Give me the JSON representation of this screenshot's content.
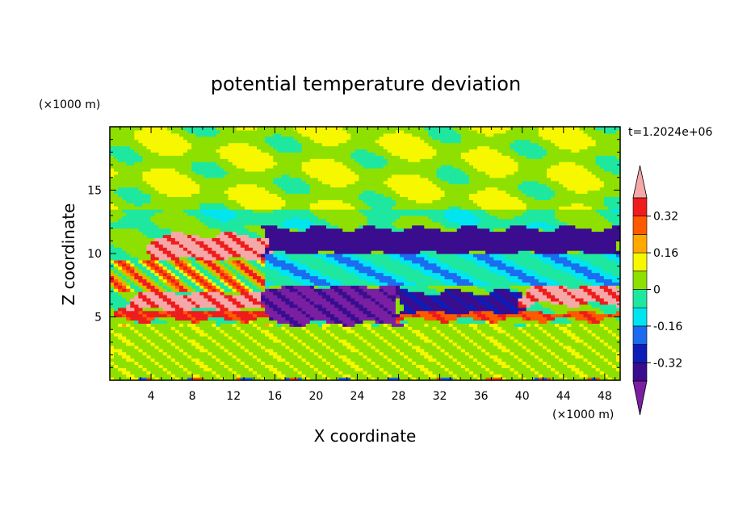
{
  "chart_data": {
    "type": "heatmap",
    "title": "potential temperature deviation",
    "xlabel": "X coordinate",
    "ylabel": "Z coordinate",
    "x_unit": "(×1000 m)",
    "y_unit": "(×1000 m)",
    "time_label": "t=1.2024e+06",
    "xlim": [
      0,
      49.5
    ],
    "ylim": [
      0,
      20
    ],
    "x_ticks": [
      4,
      8,
      12,
      16,
      20,
      24,
      28,
      32,
      36,
      40,
      44,
      48
    ],
    "y_ticks": [
      5,
      10,
      15
    ],
    "colorbar": {
      "levels": [
        -0.4,
        -0.32,
        -0.24,
        -0.16,
        -0.08,
        0,
        0.08,
        0.16,
        0.24,
        0.32,
        0.4
      ],
      "tick_labels": [
        "0.32",
        "0.16",
        "0",
        "-0.16",
        "-0.32"
      ],
      "tick_values": [
        0.32,
        0.16,
        0,
        -0.16,
        -0.32
      ],
      "colors": [
        "#7a1fa2",
        "#3a0d8f",
        "#0d1db8",
        "#1b6cf0",
        "#00e5f0",
        "#1ee8a0",
        "#8ee000",
        "#f7f700",
        "#ffa800",
        "#ff5a00",
        "#ee1c1c",
        "#f6a8a8"
      ],
      "extend": "both"
    },
    "regions": [
      {
        "x": [
          0,
          49.5
        ],
        "z": [
          0,
          4.5
        ],
        "level": 0.05,
        "pattern": "turbulent mix near 0"
      },
      {
        "x": [
          0,
          16
        ],
        "z": [
          4.8,
          5.6
        ],
        "level": 0.35,
        "pattern": "warm layer"
      },
      {
        "x": [
          2,
          15
        ],
        "z": [
          5.6,
          7
        ],
        "level": 0.42,
        "pattern": "warm pink"
      },
      {
        "x": [
          4,
          16
        ],
        "z": [
          9.5,
          11.5
        ],
        "level": 0.42,
        "pattern": "warm pink"
      },
      {
        "x": [
          15,
          49.5
        ],
        "z": [
          10,
          12
        ],
        "level": -0.36,
        "pattern": "cold band"
      },
      {
        "x": [
          15,
          28
        ],
        "z": [
          4.5,
          7.5
        ],
        "level": -0.42,
        "pattern": "cold purple"
      },
      {
        "x": [
          28,
          40
        ],
        "z": [
          5,
          7
        ],
        "level": -0.34,
        "pattern": "cold band"
      },
      {
        "x": [
          40,
          49.5
        ],
        "z": [
          6,
          7.5
        ],
        "level": 0.42,
        "pattern": "warm pink"
      },
      {
        "x": [
          28,
          49.5
        ],
        "z": [
          4.8,
          5.4
        ],
        "level": 0.3,
        "pattern": "warm layer"
      },
      {
        "x": [
          0,
          49.5
        ],
        "z": [
          12,
          20
        ],
        "level": 0.08,
        "pattern": "upper waves"
      }
    ]
  }
}
